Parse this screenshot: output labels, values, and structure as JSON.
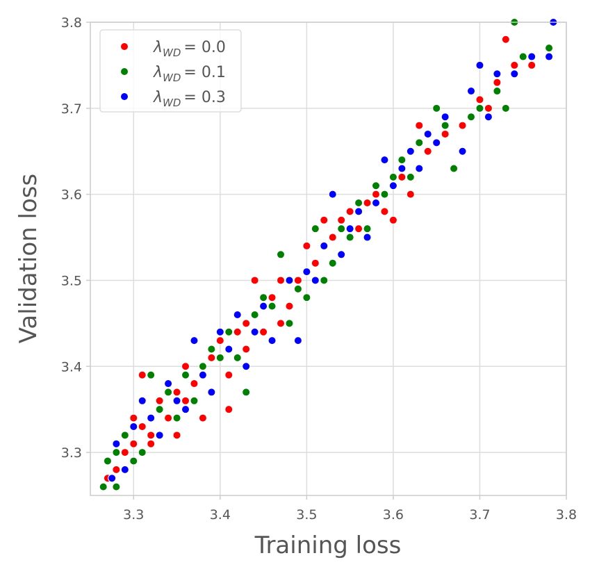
{
  "chart_data": {
    "type": "scatter",
    "xlabel": "Training loss",
    "ylabel": "Validation loss",
    "xlim": [
      3.25,
      3.8
    ],
    "ylim": [
      3.25,
      3.8
    ],
    "xticks": [
      "3.3",
      "3.4",
      "3.5",
      "3.6",
      "3.7",
      "3.8"
    ],
    "yticks": [
      "3.3",
      "3.4",
      "3.5",
      "3.6",
      "3.7",
      "3.8"
    ],
    "grid": true,
    "legend_position": "top-left",
    "series": [
      {
        "name": "λ_WD = 0.0",
        "label_main": "λ",
        "label_sub": "WD",
        "label_value": "= 0.0",
        "color": "#ff0000",
        "points": [
          [
            3.27,
            3.27
          ],
          [
            3.28,
            3.28
          ],
          [
            3.29,
            3.3
          ],
          [
            3.3,
            3.31
          ],
          [
            3.3,
            3.34
          ],
          [
            3.31,
            3.33
          ],
          [
            3.31,
            3.39
          ],
          [
            3.32,
            3.32
          ],
          [
            3.32,
            3.31
          ],
          [
            3.33,
            3.36
          ],
          [
            3.34,
            3.34
          ],
          [
            3.35,
            3.32
          ],
          [
            3.35,
            3.37
          ],
          [
            3.36,
            3.36
          ],
          [
            3.36,
            3.4
          ],
          [
            3.37,
            3.38
          ],
          [
            3.38,
            3.34
          ],
          [
            3.39,
            3.41
          ],
          [
            3.4,
            3.43
          ],
          [
            3.41,
            3.39
          ],
          [
            3.41,
            3.35
          ],
          [
            3.42,
            3.44
          ],
          [
            3.43,
            3.45
          ],
          [
            3.43,
            3.42
          ],
          [
            3.44,
            3.5
          ],
          [
            3.44,
            3.46
          ],
          [
            3.45,
            3.44
          ],
          [
            3.46,
            3.48
          ],
          [
            3.47,
            3.5
          ],
          [
            3.47,
            3.45
          ],
          [
            3.48,
            3.47
          ],
          [
            3.49,
            3.5
          ],
          [
            3.5,
            3.54
          ],
          [
            3.51,
            3.52
          ],
          [
            3.52,
            3.57
          ],
          [
            3.53,
            3.55
          ],
          [
            3.54,
            3.57
          ],
          [
            3.55,
            3.58
          ],
          [
            3.56,
            3.56
          ],
          [
            3.57,
            3.59
          ],
          [
            3.58,
            3.6
          ],
          [
            3.59,
            3.58
          ],
          [
            3.6,
            3.57
          ],
          [
            3.61,
            3.62
          ],
          [
            3.62,
            3.6
          ],
          [
            3.63,
            3.68
          ],
          [
            3.64,
            3.65
          ],
          [
            3.66,
            3.67
          ],
          [
            3.68,
            3.68
          ],
          [
            3.7,
            3.71
          ],
          [
            3.71,
            3.7
          ],
          [
            3.72,
            3.73
          ],
          [
            3.73,
            3.78
          ],
          [
            3.74,
            3.75
          ],
          [
            3.76,
            3.75
          ]
        ]
      },
      {
        "name": "λ_WD = 0.1",
        "label_main": "λ",
        "label_sub": "WD",
        "label_value": "= 0.1",
        "color": "#008000",
        "points": [
          [
            3.265,
            3.26
          ],
          [
            3.27,
            3.29
          ],
          [
            3.28,
            3.26
          ],
          [
            3.28,
            3.3
          ],
          [
            3.29,
            3.32
          ],
          [
            3.3,
            3.29
          ],
          [
            3.31,
            3.3
          ],
          [
            3.32,
            3.39
          ],
          [
            3.33,
            3.35
          ],
          [
            3.34,
            3.37
          ],
          [
            3.35,
            3.34
          ],
          [
            3.36,
            3.39
          ],
          [
            3.37,
            3.36
          ],
          [
            3.38,
            3.4
          ],
          [
            3.39,
            3.42
          ],
          [
            3.4,
            3.41
          ],
          [
            3.41,
            3.44
          ],
          [
            3.42,
            3.41
          ],
          [
            3.43,
            3.37
          ],
          [
            3.44,
            3.46
          ],
          [
            3.45,
            3.48
          ],
          [
            3.46,
            3.47
          ],
          [
            3.47,
            3.53
          ],
          [
            3.48,
            3.45
          ],
          [
            3.49,
            3.49
          ],
          [
            3.5,
            3.48
          ],
          [
            3.51,
            3.56
          ],
          [
            3.52,
            3.5
          ],
          [
            3.53,
            3.52
          ],
          [
            3.54,
            3.56
          ],
          [
            3.55,
            3.55
          ],
          [
            3.56,
            3.59
          ],
          [
            3.57,
            3.56
          ],
          [
            3.58,
            3.61
          ],
          [
            3.59,
            3.6
          ],
          [
            3.6,
            3.62
          ],
          [
            3.61,
            3.64
          ],
          [
            3.62,
            3.62
          ],
          [
            3.63,
            3.66
          ],
          [
            3.65,
            3.7
          ],
          [
            3.66,
            3.68
          ],
          [
            3.67,
            3.63
          ],
          [
            3.69,
            3.69
          ],
          [
            3.7,
            3.7
          ],
          [
            3.72,
            3.72
          ],
          [
            3.73,
            3.7
          ],
          [
            3.74,
            3.8
          ],
          [
            3.75,
            3.76
          ],
          [
            3.78,
            3.77
          ]
        ]
      },
      {
        "name": "λ_WD = 0.3",
        "label_main": "λ",
        "label_sub": "WD",
        "label_value": "= 0.3",
        "color": "#0000ff",
        "points": [
          [
            3.275,
            3.27
          ],
          [
            3.28,
            3.31
          ],
          [
            3.29,
            3.28
          ],
          [
            3.3,
            3.33
          ],
          [
            3.31,
            3.36
          ],
          [
            3.32,
            3.34
          ],
          [
            3.33,
            3.32
          ],
          [
            3.34,
            3.38
          ],
          [
            3.35,
            3.36
          ],
          [
            3.36,
            3.35
          ],
          [
            3.37,
            3.43
          ],
          [
            3.38,
            3.39
          ],
          [
            3.39,
            3.37
          ],
          [
            3.4,
            3.44
          ],
          [
            3.41,
            3.42
          ],
          [
            3.42,
            3.46
          ],
          [
            3.43,
            3.4
          ],
          [
            3.44,
            3.44
          ],
          [
            3.45,
            3.47
          ],
          [
            3.46,
            3.43
          ],
          [
            3.48,
            3.5
          ],
          [
            3.49,
            3.43
          ],
          [
            3.5,
            3.51
          ],
          [
            3.51,
            3.5
          ],
          [
            3.52,
            3.54
          ],
          [
            3.53,
            3.6
          ],
          [
            3.54,
            3.53
          ],
          [
            3.55,
            3.56
          ],
          [
            3.56,
            3.58
          ],
          [
            3.57,
            3.55
          ],
          [
            3.58,
            3.59
          ],
          [
            3.59,
            3.64
          ],
          [
            3.6,
            3.61
          ],
          [
            3.61,
            3.63
          ],
          [
            3.62,
            3.65
          ],
          [
            3.63,
            3.63
          ],
          [
            3.64,
            3.67
          ],
          [
            3.65,
            3.66
          ],
          [
            3.66,
            3.69
          ],
          [
            3.68,
            3.65
          ],
          [
            3.69,
            3.72
          ],
          [
            3.7,
            3.75
          ],
          [
            3.71,
            3.69
          ],
          [
            3.72,
            3.74
          ],
          [
            3.74,
            3.74
          ],
          [
            3.76,
            3.76
          ],
          [
            3.78,
            3.76
          ],
          [
            3.785,
            3.8
          ]
        ]
      }
    ]
  }
}
